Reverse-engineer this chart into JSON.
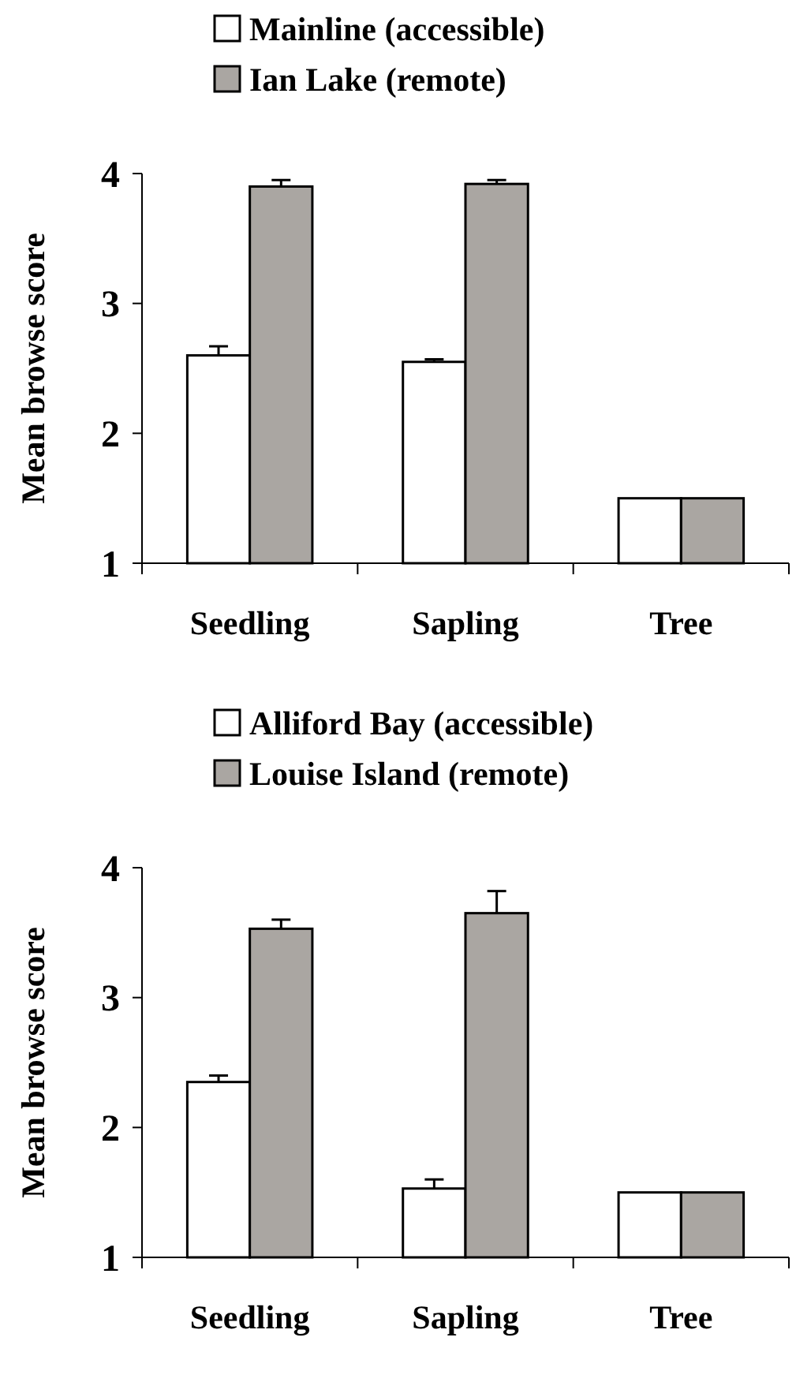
{
  "chart_data": [
    {
      "type": "bar",
      "ylabel": "Mean browse score",
      "categories": [
        "Seedling",
        "Sapling",
        "Tree"
      ],
      "ylim": [
        1,
        4
      ],
      "yticks": [
        1,
        2,
        3,
        4
      ],
      "legend": "top",
      "series": [
        {
          "name": "Mainline (accessible)",
          "color": "#ffffff",
          "values": [
            2.6,
            2.55,
            1.5
          ],
          "errors": [
            0.07,
            0.02,
            null
          ]
        },
        {
          "name": "Ian Lake (remote)",
          "color": "#aaa6a2",
          "values": [
            3.9,
            3.92,
            1.5
          ],
          "errors": [
            0.05,
            0.03,
            null
          ]
        }
      ]
    },
    {
      "type": "bar",
      "ylabel": "Mean browse score",
      "categories": [
        "Seedling",
        "Sapling",
        "Tree"
      ],
      "ylim": [
        1,
        4
      ],
      "yticks": [
        1,
        2,
        3,
        4
      ],
      "legend": "top",
      "series": [
        {
          "name": "Alliford Bay (accessible)",
          "color": "#ffffff",
          "values": [
            2.35,
            1.53,
            1.5
          ],
          "errors": [
            0.05,
            0.07,
            null
          ]
        },
        {
          "name": "Louise Island (remote)",
          "color": "#aaa6a2",
          "values": [
            3.53,
            3.65,
            1.5
          ],
          "errors": [
            0.07,
            0.17,
            null
          ]
        }
      ]
    }
  ]
}
